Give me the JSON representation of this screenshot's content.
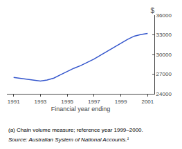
{
  "chart_data": {
    "type": "line",
    "title": "$",
    "xlabel": "Financial year ending",
    "annotations": [
      "(a) Chain volume measure; reference year 1999–2000.",
      "Source: Australian System of National Accounts.¹"
    ],
    "x": [
      1991,
      1991.5,
      1992,
      1992.5,
      1993,
      1993.5,
      1994,
      1994.5,
      1995,
      1995.5,
      1996,
      1996.5,
      1997,
      1997.5,
      1998,
      1998.5,
      1999,
      1999.5,
      2000,
      2000.5,
      2001
    ],
    "values": [
      26500,
      26350,
      26200,
      26050,
      25950,
      26100,
      26400,
      26900,
      27400,
      27900,
      28300,
      28800,
      29300,
      29900,
      30500,
      31100,
      31700,
      32300,
      32800,
      33050,
      33200
    ],
    "color": "#3355cc",
    "xlim": [
      1990.5,
      2001.5
    ],
    "xticks": [
      1991,
      1993,
      1995,
      1997,
      1999,
      2001
    ],
    "ylim": [
      24000,
      36000
    ],
    "yticks": [
      24000,
      27000,
      30000,
      33000,
      36000
    ],
    "grid": false
  }
}
